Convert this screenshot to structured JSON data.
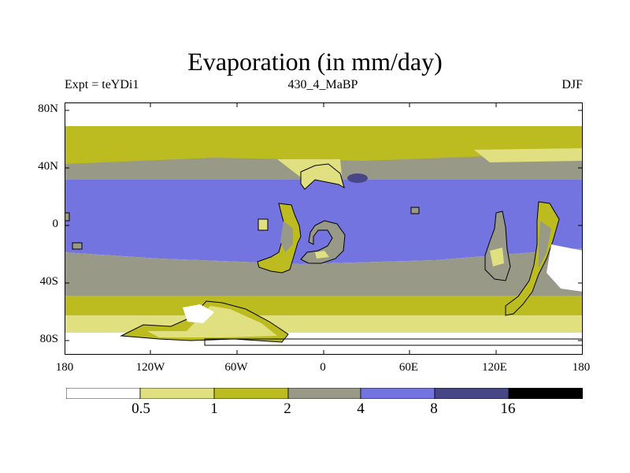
{
  "title": "Evaporation (in mm/day)",
  "subtitle_left": "Expt = teYDi1",
  "subtitle_center": "430_4_MaBP",
  "subtitle_right": "DJF",
  "lat_labels": [
    "80N",
    "40N",
    "0",
    "40S",
    "80S"
  ],
  "lon_labels": [
    "180",
    "120W",
    "60W",
    "0",
    "60E",
    "120E",
    "180"
  ],
  "colorbar": {
    "levels": [
      "0.5",
      "1",
      "2",
      "4",
      "8",
      "16"
    ],
    "colors": [
      "#ffffff",
      "#e0e080",
      "#bcbc20",
      "#999988",
      "#7474e0",
      "#474788",
      "#000000"
    ]
  },
  "legend_ranges_mm_day": [
    "<0.5",
    "0.5-1",
    "1-2",
    "2-4",
    "4-8",
    "8-16",
    ">16"
  ]
}
